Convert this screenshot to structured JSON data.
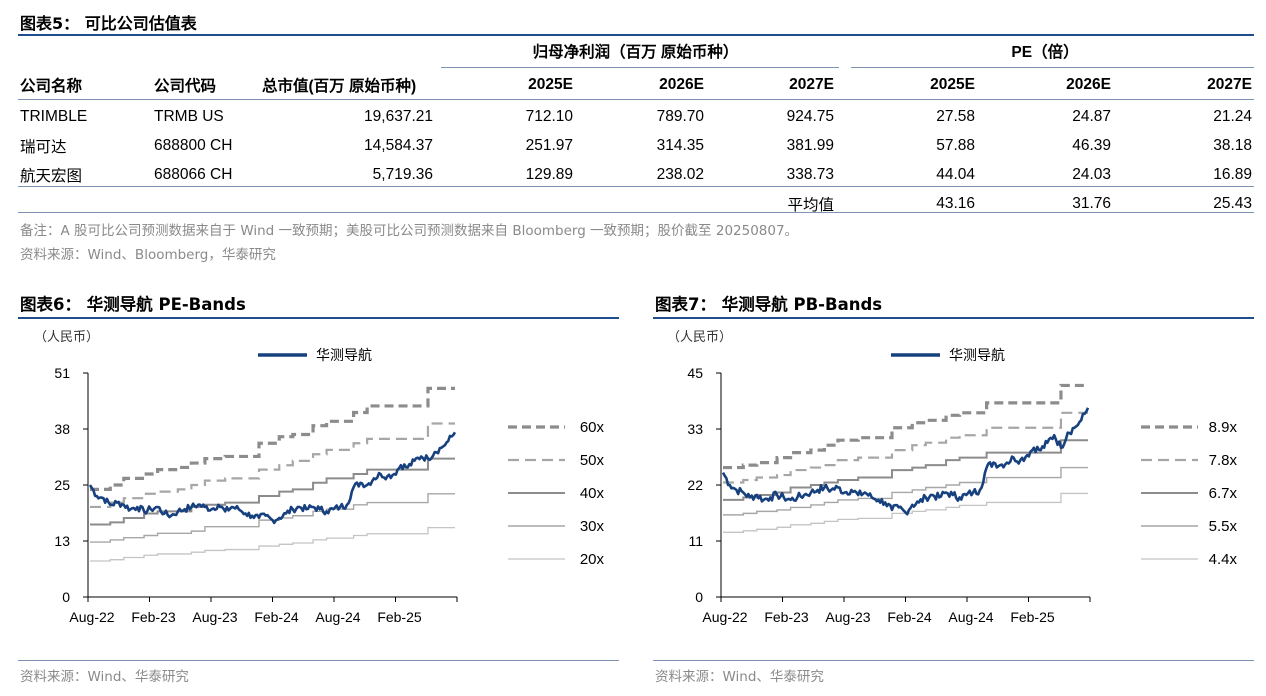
{
  "table": {
    "title": "图表5： 可比公司估值表",
    "group_profit": "归母净利润（百万 原始币种）",
    "group_pe": "PE（倍）",
    "headers": [
      "公司名称",
      "公司代码",
      "总市值(百万 原始币种)",
      "2025E",
      "2026E",
      "2027E",
      "2025E",
      "2026E",
      "2027E"
    ],
    "rows": [
      [
        "TRIMBLE",
        "TRMB US",
        "19,637.21",
        "712.10",
        "789.70",
        "924.75",
        "27.58",
        "24.87",
        "21.24"
      ],
      [
        "瑞可达",
        "688800 CH",
        "14,584.37",
        "251.97",
        "314.35",
        "381.99",
        "57.88",
        "46.39",
        "38.18"
      ],
      [
        "航天宏图",
        "688066 CH",
        "5,719.36",
        "129.89",
        "238.02",
        "338.73",
        "44.04",
        "24.03",
        "16.89"
      ]
    ],
    "avg_label": "平均值",
    "avg_values": [
      "43.16",
      "31.76",
      "25.43"
    ],
    "note": "备注：A 股可比公司预测数据来自于 Wind 一致预期；美股可比公司预测数据来自 Bloomberg 一致预期；股价截至 20250807。",
    "source": "资料来源：Wind、Bloomberg，华泰研究"
  },
  "chart6": {
    "title": "图表6： 华测导航 PE-Bands",
    "source": "资料来源：Wind、华泰研究"
  },
  "chart7": {
    "title": "图表7： 华测导航 PB-Bands",
    "source": "资料来源：Wind、华泰研究"
  },
  "colors": {
    "accent": "#1F4E8C",
    "series_line": "#17407E",
    "band_dark": "#8C8C8C",
    "band_light": "#BDBDBD"
  },
  "chart_data": [
    {
      "type": "line",
      "ylabel": "（人民币）",
      "ylim": [
        0,
        51
      ],
      "yticks": [
        "51",
        "38",
        "25",
        "13",
        "0"
      ],
      "xticks": [
        "Aug-22",
        "Feb-23",
        "Aug-23",
        "Feb-24",
        "Aug-24",
        "Feb-25"
      ],
      "x_range": [
        "2022-08",
        "2025-08"
      ],
      "grid": false,
      "legend_position": "top",
      "series": [
        {
          "name": "华测导航",
          "values": [
            25.5,
            23,
            22.5,
            21,
            21.5,
            21,
            20,
            20.5,
            19.5,
            20,
            20.5,
            19,
            18.5,
            19.5,
            20,
            20.5,
            21,
            20.5,
            20,
            21,
            19.5,
            20.5,
            20,
            19,
            18.5,
            18,
            18.5,
            17.5,
            18,
            19,
            20,
            20.5,
            20,
            20.5,
            20,
            19.5,
            20,
            20.5,
            21,
            25,
            26,
            25.5,
            27,
            28,
            27.5,
            28,
            30,
            29.5,
            31,
            32,
            31.5,
            33,
            34,
            35.5,
            37.5
          ]
        },
        {
          "name": "60x",
          "values": [
            24.5,
            24.5,
            24.5,
            25.5,
            25.5,
            27,
            27,
            27,
            28,
            28,
            29,
            29,
            29,
            29.5,
            29.5,
            30.5,
            30.5,
            31.5,
            31.5,
            31.5,
            32,
            32,
            32,
            32,
            32,
            35,
            35,
            35,
            36.5,
            36.5,
            37,
            37,
            37,
            39,
            39,
            40,
            40,
            40,
            40,
            42,
            42,
            43.5,
            43.5,
            43.5,
            43.5,
            43.5,
            43.5,
            43.5,
            43.5,
            43.5,
            47.5,
            47.5,
            47.5,
            47.5,
            47.5
          ]
        },
        {
          "name": "50x",
          "values": [
            20.5,
            20.5,
            20.5,
            21.5,
            21.5,
            22.5,
            22.5,
            22.5,
            23.5,
            23.5,
            24,
            24,
            24,
            24.5,
            24.5,
            25.5,
            25.5,
            26.5,
            26.5,
            26.5,
            27,
            27,
            27,
            27,
            27,
            29,
            29,
            29,
            30,
            30,
            31,
            31,
            31,
            32.5,
            32.5,
            33.5,
            33.5,
            33.5,
            33.5,
            35,
            35,
            36,
            36,
            36,
            36,
            36,
            36,
            36,
            36,
            36,
            39.5,
            39.5,
            39.5,
            39.5,
            39.5
          ]
        },
        {
          "name": "40x",
          "values": [
            16.5,
            16.5,
            16.5,
            17,
            17,
            18,
            18,
            18,
            19,
            19,
            19.5,
            19.5,
            19.5,
            19.5,
            19.5,
            20.5,
            20.5,
            21,
            21,
            21,
            21.5,
            21.5,
            21.5,
            21.5,
            21.5,
            23,
            23,
            23,
            24,
            24,
            24.5,
            24.5,
            24.5,
            26,
            26,
            27,
            27,
            27,
            27,
            28,
            28,
            29,
            29,
            29,
            29,
            29,
            29,
            29,
            29,
            29,
            31.5,
            31.5,
            31.5,
            31.5,
            31.5
          ]
        },
        {
          "name": "30x",
          "values": [
            12.5,
            12.5,
            12.5,
            13,
            13,
            13.5,
            13.5,
            13.5,
            14,
            14,
            14.5,
            14.5,
            14.5,
            14.5,
            14.5,
            15,
            15,
            16,
            16,
            16,
            16,
            16,
            16,
            16,
            16,
            17.5,
            17.5,
            17.5,
            18,
            18,
            18.5,
            18.5,
            18.5,
            19.5,
            19.5,
            20,
            20,
            20,
            20,
            21,
            21,
            21.5,
            21.5,
            21.5,
            21.5,
            21.5,
            21.5,
            21.5,
            21.5,
            21.5,
            23.5,
            23.5,
            23.5,
            23.5,
            23.5
          ]
        },
        {
          "name": "20x",
          "values": [
            8.2,
            8.2,
            8.2,
            8.5,
            8.5,
            9,
            9,
            9,
            9.5,
            9.5,
            9.8,
            9.8,
            9.8,
            9.8,
            9.8,
            10.2,
            10.2,
            10.6,
            10.6,
            10.6,
            10.8,
            10.8,
            10.8,
            10.8,
            10.8,
            11.6,
            11.6,
            11.6,
            12,
            12,
            12.3,
            12.3,
            12.3,
            13,
            13,
            13.4,
            13.4,
            13.4,
            13.4,
            14,
            14,
            14.4,
            14.4,
            14.4,
            14.4,
            14.4,
            14.4,
            14.4,
            14.4,
            14.4,
            15.8,
            15.8,
            15.8,
            15.8,
            15.8
          ]
        }
      ]
    },
    {
      "type": "line",
      "ylabel": "（人民币）",
      "ylim": [
        0,
        45
      ],
      "yticks": [
        "45",
        "33",
        "22",
        "11",
        "0"
      ],
      "xticks": [
        "Aug-22",
        "Feb-23",
        "Aug-23",
        "Feb-24",
        "Aug-24",
        "Feb-25"
      ],
      "x_range": [
        "2022-08",
        "2025-08"
      ],
      "grid": false,
      "legend_position": "top",
      "series": [
        {
          "name": "华测导航",
          "values": [
            25,
            22.5,
            21.5,
            21,
            20,
            20.5,
            19.5,
            20,
            20.5,
            20,
            19.5,
            20,
            20.5,
            21,
            21.5,
            22,
            21.5,
            22,
            21,
            21.5,
            20.5,
            21,
            20,
            19.5,
            19,
            17.5,
            18,
            17,
            18.5,
            19,
            20,
            20.5,
            20,
            21,
            20.5,
            20,
            20.5,
            21,
            21.5,
            26,
            27,
            26.5,
            27,
            28,
            27.5,
            28.5,
            30,
            29.5,
            31,
            32.5,
            30,
            33,
            34,
            35.5,
            38
          ]
        },
        {
          "name": "8.9x",
          "values": [
            26,
            26,
            26,
            26.5,
            26.5,
            27,
            27,
            27,
            28,
            28,
            29,
            29,
            29,
            29.5,
            29.5,
            30.5,
            30.5,
            31.5,
            31.5,
            31.5,
            32,
            32,
            32,
            32,
            32,
            34,
            34,
            34,
            35,
            35,
            35.5,
            35.5,
            35.5,
            36.5,
            36.5,
            37,
            37,
            37,
            37,
            39,
            39,
            39,
            39,
            39,
            39,
            39,
            39,
            39,
            39,
            39,
            42.5,
            42.5,
            42.5,
            42.5,
            42.5
          ]
        },
        {
          "name": "7.8x",
          "values": [
            23,
            23,
            23,
            23.5,
            23.5,
            24,
            24,
            24,
            24.5,
            24.5,
            25.5,
            25.5,
            25.5,
            26,
            26,
            26.5,
            26.5,
            27.5,
            27.5,
            27.5,
            28,
            28,
            28,
            28,
            28,
            29.5,
            29.5,
            29.5,
            30.5,
            30.5,
            31,
            31,
            31,
            32,
            32,
            32.5,
            32.5,
            32.5,
            32.5,
            34,
            34,
            34,
            34,
            34,
            34,
            34,
            34,
            34,
            34,
            34,
            37,
            37,
            37,
            37,
            37
          ]
        },
        {
          "name": "6.7x",
          "values": [
            19.5,
            19.5,
            19.5,
            20,
            20,
            20.5,
            20.5,
            20.5,
            21,
            21,
            22,
            22,
            22,
            22.5,
            22.5,
            23,
            23,
            23.5,
            23.5,
            23.5,
            24,
            24,
            24,
            24,
            24,
            25.5,
            25.5,
            25.5,
            26,
            26,
            26.5,
            26.5,
            26.5,
            27.5,
            27.5,
            28,
            28,
            28,
            28,
            29,
            29,
            29,
            29,
            29,
            29,
            29,
            29,
            29,
            29,
            29,
            31.5,
            31.5,
            31.5,
            31.5,
            31.5
          ]
        },
        {
          "name": "5.5x",
          "values": [
            16.5,
            16.5,
            16.5,
            16.8,
            16.8,
            17.2,
            17.2,
            17.2,
            17.5,
            17.5,
            18,
            18,
            18,
            18.5,
            18.5,
            19,
            19,
            19.5,
            19.5,
            19.5,
            19.8,
            19.8,
            19.8,
            19.8,
            19.8,
            21,
            21,
            21,
            21.5,
            21.5,
            22,
            22,
            22,
            22.5,
            22.5,
            23,
            23,
            23,
            23,
            24,
            24,
            24,
            24,
            24,
            24,
            24,
            24,
            24,
            24,
            24,
            26,
            26,
            26,
            26,
            26
          ]
        },
        {
          "name": "4.4x",
          "values": [
            13,
            13,
            13,
            13.3,
            13.3,
            13.6,
            13.6,
            13.6,
            14,
            14,
            14.5,
            14.5,
            14.5,
            14.8,
            14.8,
            15.2,
            15.2,
            15.6,
            15.6,
            15.6,
            15.8,
            15.8,
            15.8,
            15.8,
            15.8,
            16.8,
            16.8,
            16.8,
            17.2,
            17.2,
            17.5,
            17.5,
            17.5,
            18,
            18,
            18.4,
            18.4,
            18.4,
            18.4,
            19,
            19,
            19,
            19,
            19,
            19,
            19,
            19,
            19,
            19,
            19,
            20.8,
            20.8,
            20.8,
            20.8,
            20.8
          ]
        }
      ]
    }
  ]
}
